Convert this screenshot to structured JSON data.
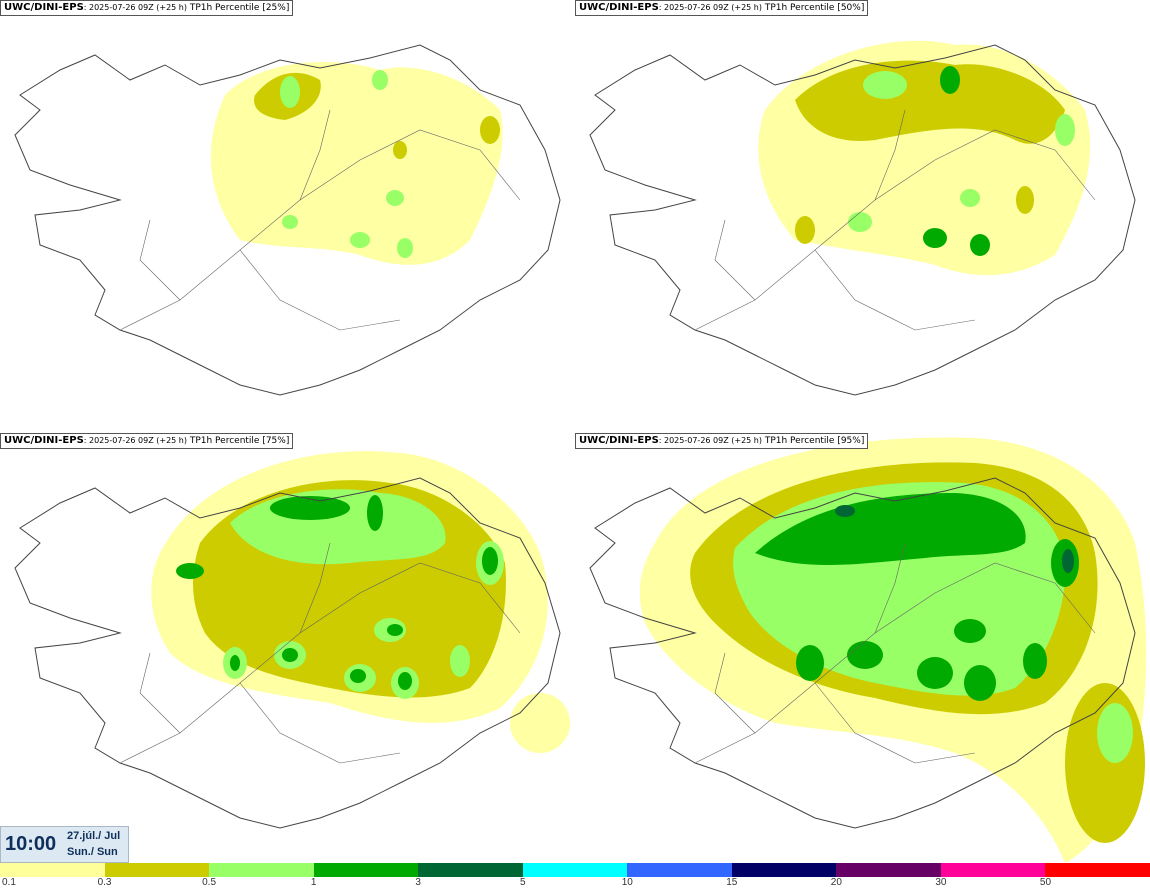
{
  "panels": [
    {
      "source": "UWC/DINI-EPS",
      "run": ": 2025-07-26 09Z (+25 h)",
      "label": " TP1h Percentile [25%]",
      "level": "p25"
    },
    {
      "source": "UWC/DINI-EPS",
      "run": ": 2025-07-26 09Z (+25 h)",
      "label": " TP1h Percentile [50%]",
      "level": "p50"
    },
    {
      "source": "UWC/DINI-EPS",
      "run": ": 2025-07-26 09Z (+25 h)",
      "label": " TP1h Percentile [75%]",
      "level": "p75"
    },
    {
      "source": "UWC/DINI-EPS",
      "run": ": 2025-07-26 09Z (+25 h)",
      "label": " TP1h Percentile [95%]",
      "level": "p95"
    }
  ],
  "valid_time": {
    "time": "10:00",
    "date_line1": "27.júl./ Jul",
    "date_line2": "Sun./ Sun"
  },
  "legend": {
    "colors": [
      "#ffff99",
      "#cccc00",
      "#99ff66",
      "#00aa00",
      "#006633",
      "#00ffff",
      "#3366ff",
      "#000066",
      "#660066",
      "#ff0099",
      "#ff0000"
    ],
    "ticks": [
      "0.1",
      "0.3",
      "0.5",
      "1",
      "3",
      "5",
      "10",
      "15",
      "20",
      "30",
      "50"
    ]
  },
  "precip_colors": {
    "c1": "#ffff99",
    "c2": "#cccc00",
    "c3": "#99ff66",
    "c4": "#00aa00",
    "c5": "#006633"
  }
}
